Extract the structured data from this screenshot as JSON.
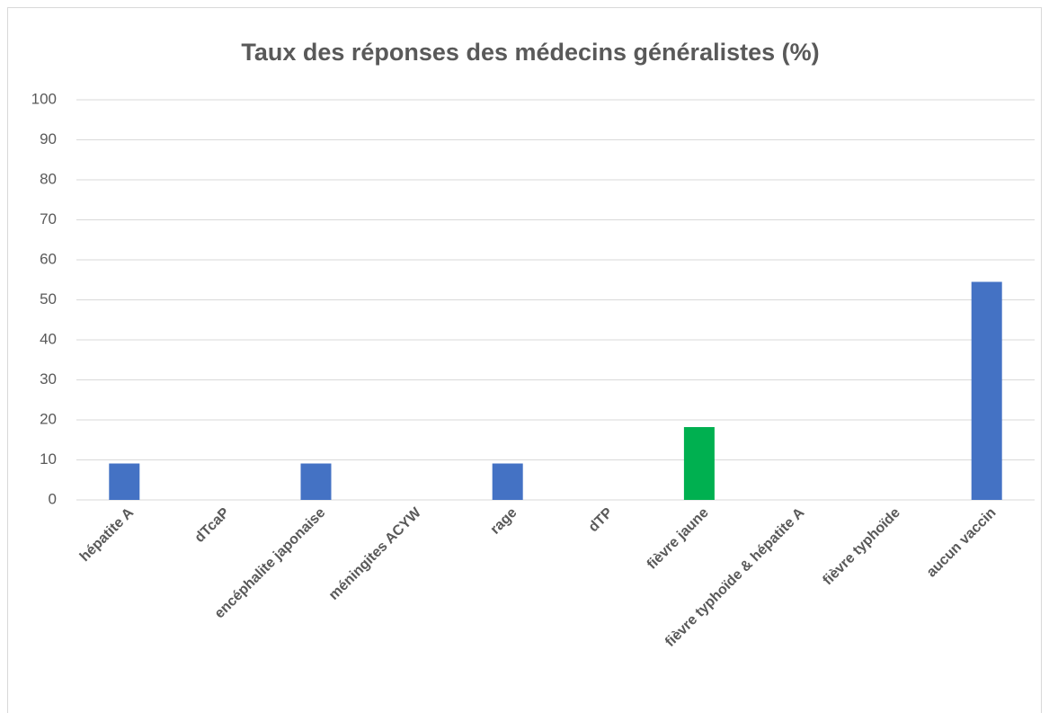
{
  "chart_data": {
    "type": "bar",
    "title": "Taux des réponses des médecins généralistes (%)",
    "categories": [
      "hépatite A",
      "dTcaP",
      "encéphalite japonaise",
      "méningites ACYW",
      "rage",
      "dTP",
      "fièvre jaune",
      "fièvre typhoïde & hépatite A",
      "fièvre typhoïde",
      "aucun vaccin"
    ],
    "values": [
      9.1,
      0,
      9.1,
      0,
      9.1,
      0,
      18.2,
      0,
      0,
      54.5
    ],
    "colors": [
      "#4472c4",
      "#4472c4",
      "#4472c4",
      "#4472c4",
      "#4472c4",
      "#4472c4",
      "#00b050",
      "#4472c4",
      "#4472c4",
      "#4472c4"
    ],
    "ylim": [
      0,
      100
    ],
    "yticks": [
      0,
      10,
      20,
      30,
      40,
      50,
      60,
      70,
      80,
      90,
      100
    ],
    "grid": true
  }
}
